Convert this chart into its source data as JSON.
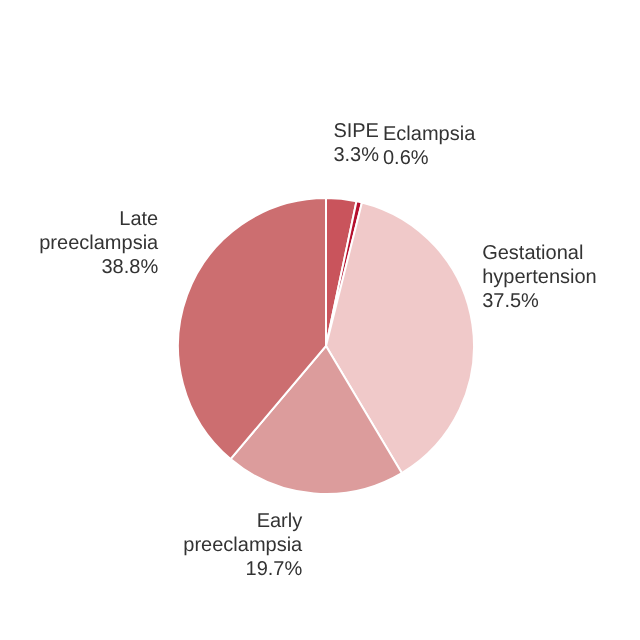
{
  "chart_data": {
    "type": "pie",
    "categories": [
      "SIPE",
      "Eclampsia",
      "Gestational hypertension",
      "Early preeclampsia",
      "Late preeclampsia"
    ],
    "values": [
      3.3,
      0.6,
      37.5,
      19.7,
      38.8
    ],
    "colors": [
      "#c9545c",
      "#b5102e",
      "#f0c9c9",
      "#dc9c9c",
      "#cc6e70"
    ],
    "value_labels": [
      "3.3%",
      "0.6%",
      "37.5%",
      "19.7%",
      "38.8%"
    ],
    "legend": false
  }
}
